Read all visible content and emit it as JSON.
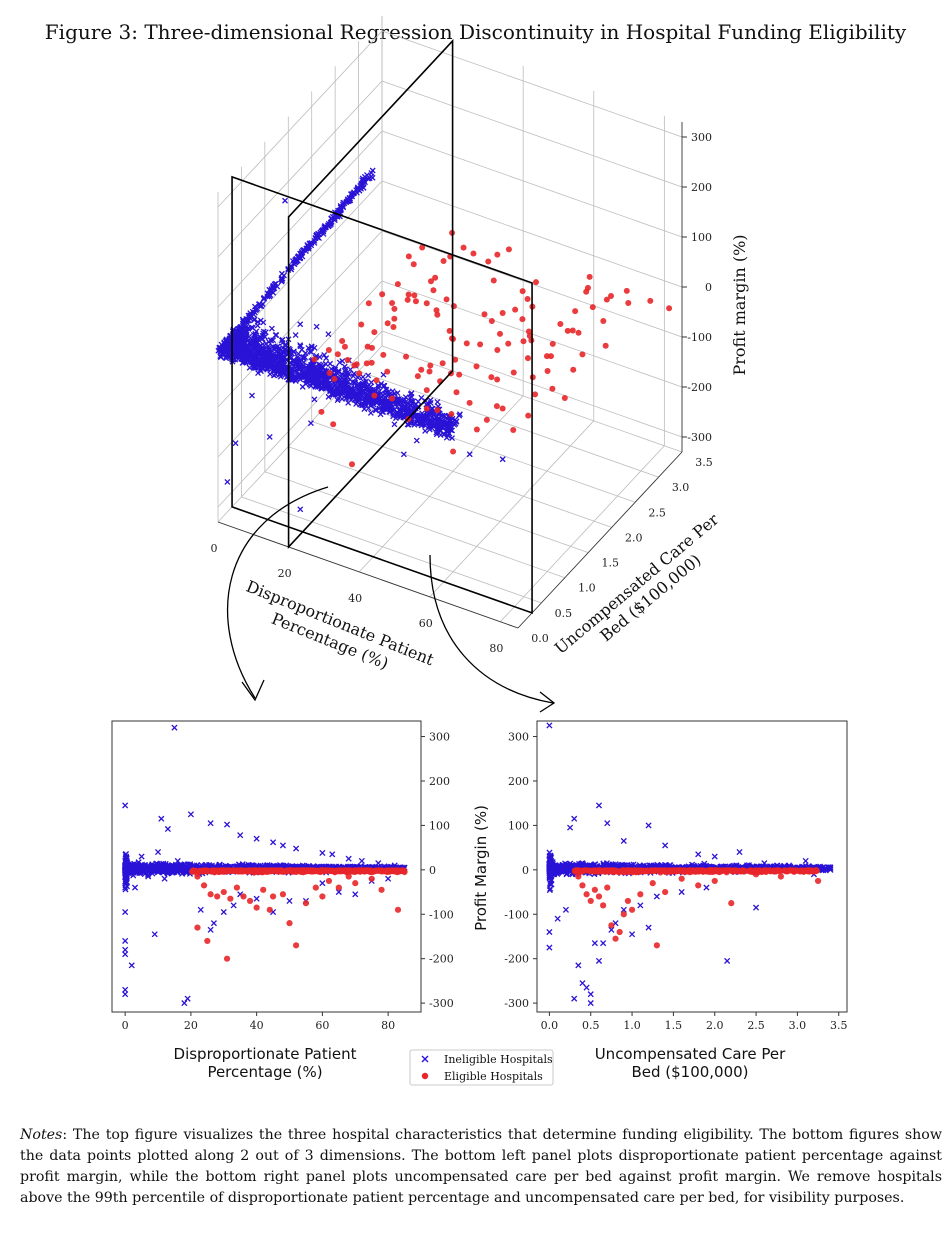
{
  "figure": {
    "title": "Figure 3: Three-dimensional Regression Discontinuity in Hospital Funding Eligibility",
    "notes_label": "Notes",
    "notes_text": ": The top figure visualizes the three hospital characteristics that determine funding eligibility. The bottom figures show the data points plotted along 2 out of 3 dimensions. The bottom left panel plots disproportionate patient percentage against profit margin, while the bottom right panel plots uncompensated care per bed against profit margin. We remove hospitals above the 99th percentile of disproportionate patient percentage and uncompensated care per bed, for visibility purposes."
  },
  "colors": {
    "ineligible": "#2a13d6",
    "eligible": "#e8262a",
    "plane": "#000000",
    "grid": "#cccccc"
  },
  "chart_data": [
    {
      "type": "scatter",
      "id": "3d",
      "title": "",
      "x_label": "Disproportionate Patient Percentage (%)",
      "x_label_lines": [
        "Disproportionate Patient",
        "Percentage (%)"
      ],
      "y_label": "Uncompensated Care Per Bed ($100,000)",
      "y_label_lines": [
        "Uncompensated Care Per",
        "Bed ($100,000)"
      ],
      "z_label": "Profit margin (%)",
      "x_ticks": [
        0,
        20,
        40,
        60,
        80
      ],
      "y_ticks": [
        "0.0",
        "0.5",
        "1.0",
        "1.5",
        "2.0",
        "2.5",
        "3.0",
        "3.5"
      ],
      "z_ticks": [
        300,
        200,
        100,
        0,
        -100,
        -200,
        -300
      ],
      "xlim": [
        0,
        85
      ],
      "ylim": [
        0,
        3.5
      ],
      "zlim": [
        -330,
        330
      ],
      "cutoff_planes": {
        "disproportionate_patient_percentage": 20,
        "uncompensated_care_per_bed": 0.3
      },
      "series": [
        {
          "name": "Ineligible Hospitals",
          "marker": "x",
          "points": [
            [
              0,
              0.05,
              5
            ],
            [
              1,
              0.1,
              -10
            ],
            [
              2,
              0.2,
              10
            ],
            [
              3,
              0.3,
              -20
            ],
            [
              4,
              0.15,
              15
            ],
            [
              5,
              0.25,
              0
            ],
            [
              6,
              0.35,
              -5
            ],
            [
              8,
              0.4,
              20
            ],
            [
              10,
              0.5,
              -15
            ],
            [
              12,
              0.6,
              5
            ],
            [
              14,
              0.7,
              30
            ],
            [
              15,
              0.8,
              -25
            ],
            [
              16,
              0.9,
              10
            ],
            [
              18,
              1.0,
              -10
            ],
            [
              20,
              0.2,
              25
            ],
            [
              22,
              0.15,
              -20
            ],
            [
              24,
              0.25,
              5
            ],
            [
              26,
              0.1,
              -30
            ],
            [
              28,
              0.2,
              15
            ],
            [
              30,
              0.1,
              -15
            ],
            [
              32,
              0.15,
              5
            ],
            [
              35,
              0.2,
              -10
            ],
            [
              38,
              0.25,
              20
            ],
            [
              40,
              0.15,
              -5
            ],
            [
              42,
              0.2,
              -20
            ],
            [
              45,
              0.25,
              10
            ],
            [
              48,
              0.15,
              -30
            ],
            [
              50,
              0.2,
              0
            ],
            [
              55,
              0.1,
              -40
            ],
            [
              60,
              0.15,
              -20
            ],
            [
              65,
              0.1,
              -10
            ],
            [
              2,
              1.2,
              40
            ],
            [
              4,
              1.5,
              60
            ],
            [
              6,
              1.8,
              80
            ],
            [
              8,
              2.0,
              100
            ],
            [
              10,
              2.3,
              130
            ],
            [
              5,
              1.0,
              -60
            ],
            [
              3,
              0.5,
              -120
            ],
            [
              1,
              0.3,
              -200
            ],
            [
              0,
              0.2,
              -270
            ],
            [
              15,
              0.3,
              320
            ],
            [
              10,
              0.8,
              -100
            ],
            [
              25,
              0.1,
              -80
            ],
            [
              52,
              0.05,
              -70
            ],
            [
              70,
              0.1,
              -30
            ],
            [
              80,
              0.05,
              -10
            ],
            [
              18,
              0.4,
              -300
            ],
            [
              12,
              0.2,
              -150
            ]
          ]
        },
        {
          "name": "Eligible Hospitals",
          "marker": "o",
          "points": [
            [
              22,
              0.4,
              10
            ],
            [
              25,
              0.5,
              -20
            ],
            [
              28,
              0.6,
              30
            ],
            [
              30,
              0.7,
              -10
            ],
            [
              33,
              0.8,
              20
            ],
            [
              36,
              0.9,
              -30
            ],
            [
              40,
              1.0,
              0
            ],
            [
              44,
              1.2,
              -40
            ],
            [
              48,
              1.4,
              15
            ],
            [
              52,
              1.6,
              -50
            ],
            [
              56,
              1.8,
              5
            ],
            [
              60,
              2.0,
              -20
            ],
            [
              64,
              2.2,
              -60
            ],
            [
              68,
              2.5,
              10
            ],
            [
              72,
              2.8,
              -30
            ],
            [
              76,
              3.0,
              20
            ],
            [
              80,
              3.2,
              -10
            ],
            [
              84,
              3.3,
              -25
            ],
            [
              26,
              0.5,
              -120
            ],
            [
              30,
              0.6,
              -200
            ],
            [
              42,
              0.9,
              -110
            ],
            [
              52,
              1.1,
              -170
            ],
            [
              24,
              0.4,
              -90
            ],
            [
              35,
              0.7,
              -60
            ]
          ]
        }
      ]
    },
    {
      "type": "scatter",
      "id": "bottom-left",
      "title": "",
      "x_label": "Disproportionate Patient Percentage (%)",
      "x_label_lines": [
        "Disproportionate Patient",
        "Percentage (%)"
      ],
      "y_label": "",
      "x_ticks": [
        0,
        20,
        40,
        60,
        80
      ],
      "y_ticks": [
        300,
        200,
        100,
        0,
        -100,
        -200,
        -300
      ],
      "xlim": [
        -4,
        90
      ],
      "ylim": [
        -320,
        335
      ],
      "series": [
        {
          "name": "Ineligible Hospitals",
          "marker": "x",
          "points": [
            [
              15,
              320
            ],
            [
              0,
              145
            ],
            [
              11,
              115
            ],
            [
              20,
              125
            ],
            [
              26,
              105
            ],
            [
              31,
              102
            ],
            [
              13,
              92
            ],
            [
              35,
              78
            ],
            [
              40,
              70
            ],
            [
              45,
              62
            ],
            [
              48,
              55
            ],
            [
              52,
              48
            ],
            [
              60,
              38
            ],
            [
              63,
              35
            ],
            [
              68,
              25
            ],
            [
              72,
              20
            ],
            [
              77,
              15
            ],
            [
              82,
              10
            ],
            [
              85,
              5
            ],
            [
              0,
              -40
            ],
            [
              0,
              -95
            ],
            [
              0,
              -160
            ],
            [
              0,
              -180
            ],
            [
              0,
              -190
            ],
            [
              0,
              -270
            ],
            [
              0,
              -280
            ],
            [
              2,
              -215
            ],
            [
              9,
              -145
            ],
            [
              18,
              -300
            ],
            [
              19,
              -290
            ],
            [
              23,
              -90
            ],
            [
              26,
              -135
            ],
            [
              27,
              -120
            ],
            [
              30,
              -95
            ],
            [
              33,
              -80
            ],
            [
              35,
              -55
            ],
            [
              40,
              -65
            ],
            [
              45,
              -95
            ],
            [
              50,
              -70
            ],
            [
              55,
              -70
            ],
            [
              60,
              -30
            ],
            [
              65,
              -50
            ],
            [
              70,
              -55
            ],
            [
              75,
              -25
            ],
            [
              80,
              -20
            ],
            [
              10,
              40
            ],
            [
              12,
              -20
            ],
            [
              16,
              20
            ],
            [
              5,
              30
            ],
            [
              3,
              -40
            ],
            [
              7,
              -15
            ]
          ]
        },
        {
          "name": "Eligible Hospitals",
          "marker": "o",
          "points": [
            [
              22,
              -15
            ],
            [
              24,
              -35
            ],
            [
              26,
              -55
            ],
            [
              28,
              -60
            ],
            [
              30,
              -50
            ],
            [
              32,
              -65
            ],
            [
              34,
              -40
            ],
            [
              36,
              -60
            ],
            [
              38,
              -70
            ],
            [
              40,
              -85
            ],
            [
              42,
              -45
            ],
            [
              45,
              -60
            ],
            [
              48,
              -55
            ],
            [
              50,
              -120
            ],
            [
              52,
              -170
            ],
            [
              55,
              -75
            ],
            [
              58,
              -40
            ],
            [
              62,
              -25
            ],
            [
              65,
              -40
            ],
            [
              70,
              -30
            ],
            [
              75,
              -20
            ],
            [
              78,
              -45
            ],
            [
              83,
              -90
            ],
            [
              85,
              -5
            ],
            [
              31,
              -200
            ],
            [
              25,
              -160
            ],
            [
              22,
              -130
            ],
            [
              44,
              -90
            ],
            [
              60,
              -60
            ],
            [
              68,
              -15
            ]
          ]
        }
      ]
    },
    {
      "type": "scatter",
      "id": "bottom-right",
      "title": "",
      "x_label": "Uncompensated Care Per Bed ($100,000)",
      "x_label_lines": [
        "Uncompensated Care Per",
        "Bed ($100,000)"
      ],
      "y_label": "Profit Margin (%)",
      "x_ticks": [
        "0.0",
        "0.5",
        "1.0",
        "1.5",
        "2.0",
        "2.5",
        "3.0",
        "3.5"
      ],
      "y_ticks": [
        300,
        200,
        100,
        0,
        -100,
        -200,
        -300
      ],
      "xlim": [
        -0.15,
        3.6
      ],
      "ylim": [
        -320,
        335
      ],
      "series": [
        {
          "name": "Ineligible Hospitals",
          "marker": "x",
          "points": [
            [
              0.0,
              325
            ],
            [
              0.6,
              145
            ],
            [
              0.3,
              115
            ],
            [
              0.25,
              95
            ],
            [
              0.7,
              105
            ],
            [
              1.2,
              100
            ],
            [
              0.9,
              65
            ],
            [
              1.4,
              55
            ],
            [
              1.8,
              35
            ],
            [
              2.0,
              30
            ],
            [
              2.3,
              40
            ],
            [
              2.6,
              15
            ],
            [
              2.9,
              10
            ],
            [
              3.1,
              20
            ],
            [
              3.4,
              0
            ],
            [
              3.2,
              -10
            ],
            [
              0.0,
              -175
            ],
            [
              0.0,
              -140
            ],
            [
              0.1,
              -110
            ],
            [
              0.2,
              -90
            ],
            [
              0.35,
              -215
            ],
            [
              0.4,
              -255
            ],
            [
              0.5,
              -280
            ],
            [
              0.5,
              -300
            ],
            [
              0.6,
              -205
            ],
            [
              0.65,
              -165
            ],
            [
              0.8,
              -120
            ],
            [
              0.9,
              -90
            ],
            [
              1.1,
              -80
            ],
            [
              1.3,
              -60
            ],
            [
              1.6,
              -50
            ],
            [
              1.9,
              -40
            ],
            [
              2.5,
              -85
            ],
            [
              2.15,
              -205
            ],
            [
              0.3,
              -290
            ],
            [
              0.45,
              -265
            ],
            [
              0.55,
              -165
            ],
            [
              0.75,
              -135
            ],
            [
              1.0,
              -145
            ],
            [
              1.2,
              -130
            ]
          ]
        },
        {
          "name": "Eligible Hospitals",
          "marker": "o",
          "points": [
            [
              0.35,
              -15
            ],
            [
              0.4,
              -35
            ],
            [
              0.45,
              -55
            ],
            [
              0.5,
              -70
            ],
            [
              0.55,
              -45
            ],
            [
              0.6,
              -60
            ],
            [
              0.7,
              -40
            ],
            [
              0.75,
              -125
            ],
            [
              0.8,
              -155
            ],
            [
              0.85,
              -140
            ],
            [
              0.9,
              -100
            ],
            [
              1.0,
              -90
            ],
            [
              1.1,
              -55
            ],
            [
              1.25,
              -30
            ],
            [
              1.3,
              -170
            ],
            [
              1.4,
              -50
            ],
            [
              1.6,
              -20
            ],
            [
              1.8,
              -35
            ],
            [
              2.0,
              -25
            ],
            [
              2.2,
              -75
            ],
            [
              2.5,
              -10
            ],
            [
              2.8,
              -15
            ],
            [
              3.25,
              -25
            ],
            [
              0.65,
              -80
            ],
            [
              0.95,
              -70
            ]
          ]
        }
      ]
    }
  ],
  "legend": {
    "ineligible_label": "Ineligible Hospitals",
    "eligible_label": "Eligible Hospitals"
  }
}
